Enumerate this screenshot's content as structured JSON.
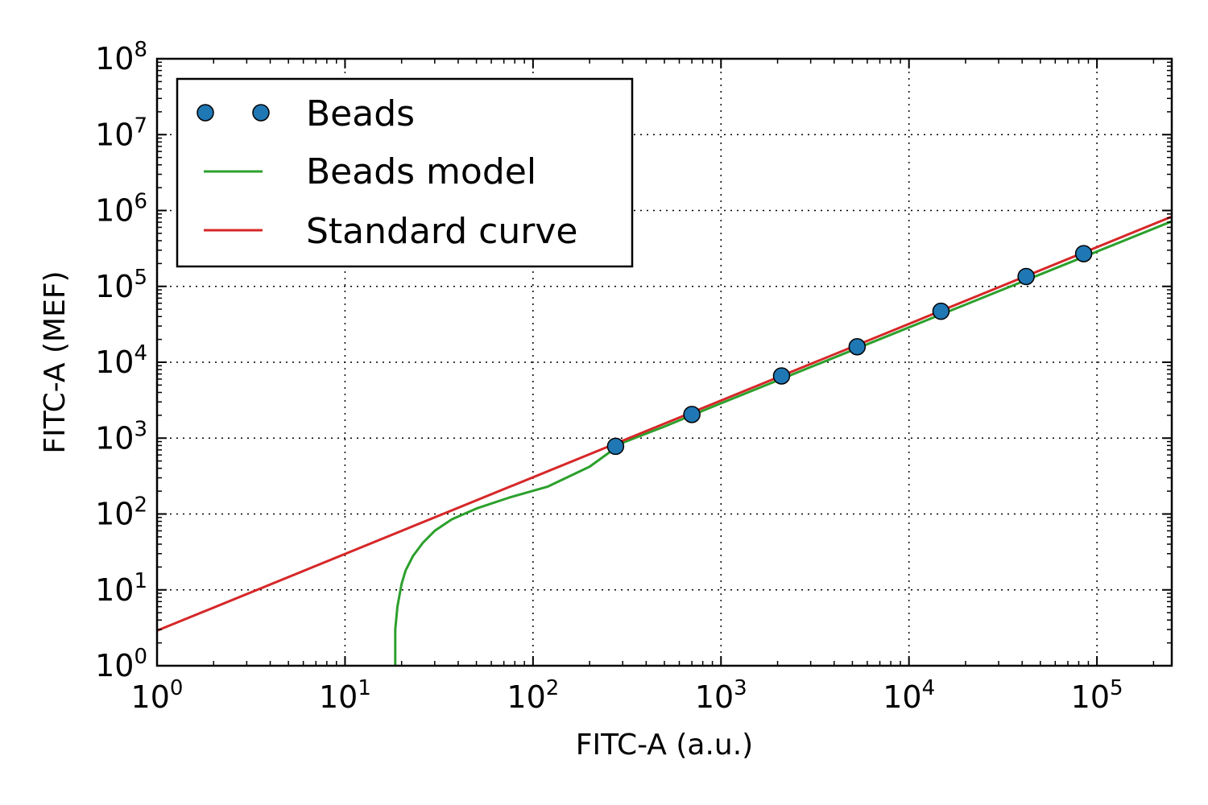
{
  "chart_data": {
    "type": "line",
    "xscale": "log",
    "yscale": "log",
    "xlabel": "FITC-A (a.u.)",
    "ylabel": "FITC-A (MEF)",
    "xlim": [
      1,
      250000
    ],
    "ylim": [
      1,
      100000000
    ],
    "grid": true,
    "legend_position": "top-left",
    "x_ticks": [
      {
        "base": "10",
        "exp": "0",
        "value": 1
      },
      {
        "base": "10",
        "exp": "1",
        "value": 10
      },
      {
        "base": "10",
        "exp": "2",
        "value": 100
      },
      {
        "base": "10",
        "exp": "3",
        "value": 1000
      },
      {
        "base": "10",
        "exp": "4",
        "value": 10000
      },
      {
        "base": "10",
        "exp": "5",
        "value": 100000
      }
    ],
    "y_ticks": [
      {
        "base": "10",
        "exp": "0",
        "value": 1
      },
      {
        "base": "10",
        "exp": "1",
        "value": 10
      },
      {
        "base": "10",
        "exp": "2",
        "value": 100
      },
      {
        "base": "10",
        "exp": "3",
        "value": 1000
      },
      {
        "base": "10",
        "exp": "4",
        "value": 10000
      },
      {
        "base": "10",
        "exp": "5",
        "value": 100000
      },
      {
        "base": "10",
        "exp": "6",
        "value": 1000000
      },
      {
        "base": "10",
        "exp": "7",
        "value": 10000000
      },
      {
        "base": "10",
        "exp": "8",
        "value": 100000000
      }
    ],
    "series": [
      {
        "name": "Beads",
        "kind": "scatter",
        "color": "#1f77b4",
        "x": [
          275,
          700,
          2100,
          5300,
          14800,
          42000,
          85000
        ],
        "y": [
          780,
          2050,
          6600,
          16000,
          47000,
          135000,
          270000
        ]
      },
      {
        "name": "Beads model",
        "kind": "line",
        "color": "#2ca02c",
        "x": [
          18.5,
          18.5,
          19,
          20,
          21,
          23,
          26,
          30,
          37,
          50,
          75,
          120,
          200,
          300,
          500,
          1000,
          2000,
          5000,
          10000,
          20000,
          50000,
          100000,
          250000
        ],
        "y": [
          1,
          3,
          6,
          12,
          18,
          28,
          42,
          60,
          85,
          118,
          165,
          230,
          420,
          870,
          1420,
          2880,
          5760,
          14400,
          28800,
          57600,
          144000,
          288000,
          720000
        ]
      },
      {
        "name": "Standard curve",
        "kind": "line",
        "color": "#d62728",
        "x": [
          1,
          250000
        ],
        "y": [
          2.9,
          830000
        ]
      }
    ]
  }
}
